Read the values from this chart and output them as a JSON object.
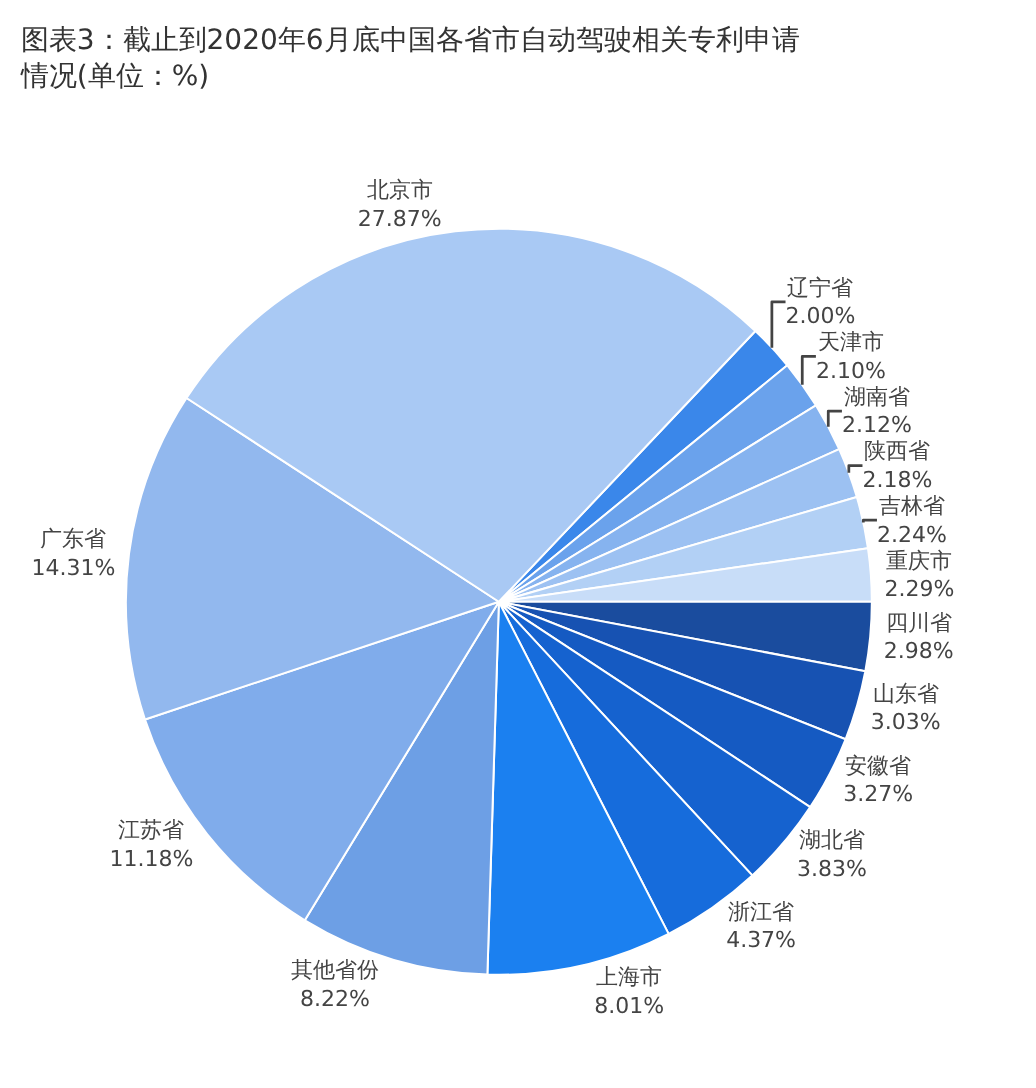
{
  "chart_data": {
    "type": "pie",
    "title": "图表3：截止到2020年6月底中国各省市自动驾驶相关专利申请情况(单位：%)",
    "categories": [
      "辽宁省",
      "天津市",
      "湖南省",
      "陕西省",
      "吉林省",
      "重庆市",
      "四川省",
      "山东省",
      "安徽省",
      "湖北省",
      "浙江省",
      "上海市",
      "其他省份",
      "江苏省",
      "广东省",
      "北京市"
    ],
    "values": [
      2.0,
      2.1,
      2.12,
      2.18,
      2.24,
      2.29,
      2.98,
      3.03,
      3.27,
      3.83,
      4.37,
      8.01,
      8.22,
      11.18,
      14.31,
      27.87
    ],
    "value_labels": [
      "2.00%",
      "2.10%",
      "2.12%",
      "2.18%",
      "2.24%",
      "2.29%",
      "2.98%",
      "3.03%",
      "3.27%",
      "3.83%",
      "4.37%",
      "8.01%",
      "8.22%",
      "11.18%",
      "14.31%",
      "27.87%"
    ],
    "colors": [
      "#3a87ea",
      "#6aa2ec",
      "#86b3ef",
      "#9cc1f2",
      "#b2d0f5",
      "#c8ddf8",
      "#1a4c9e",
      "#1752b2",
      "#155ac2",
      "#1562cf",
      "#166cdc",
      "#1b80f0",
      "#6d9fe5",
      "#80aceb",
      "#92b8ee",
      "#a9c9f4"
    ],
    "legend": false
  }
}
